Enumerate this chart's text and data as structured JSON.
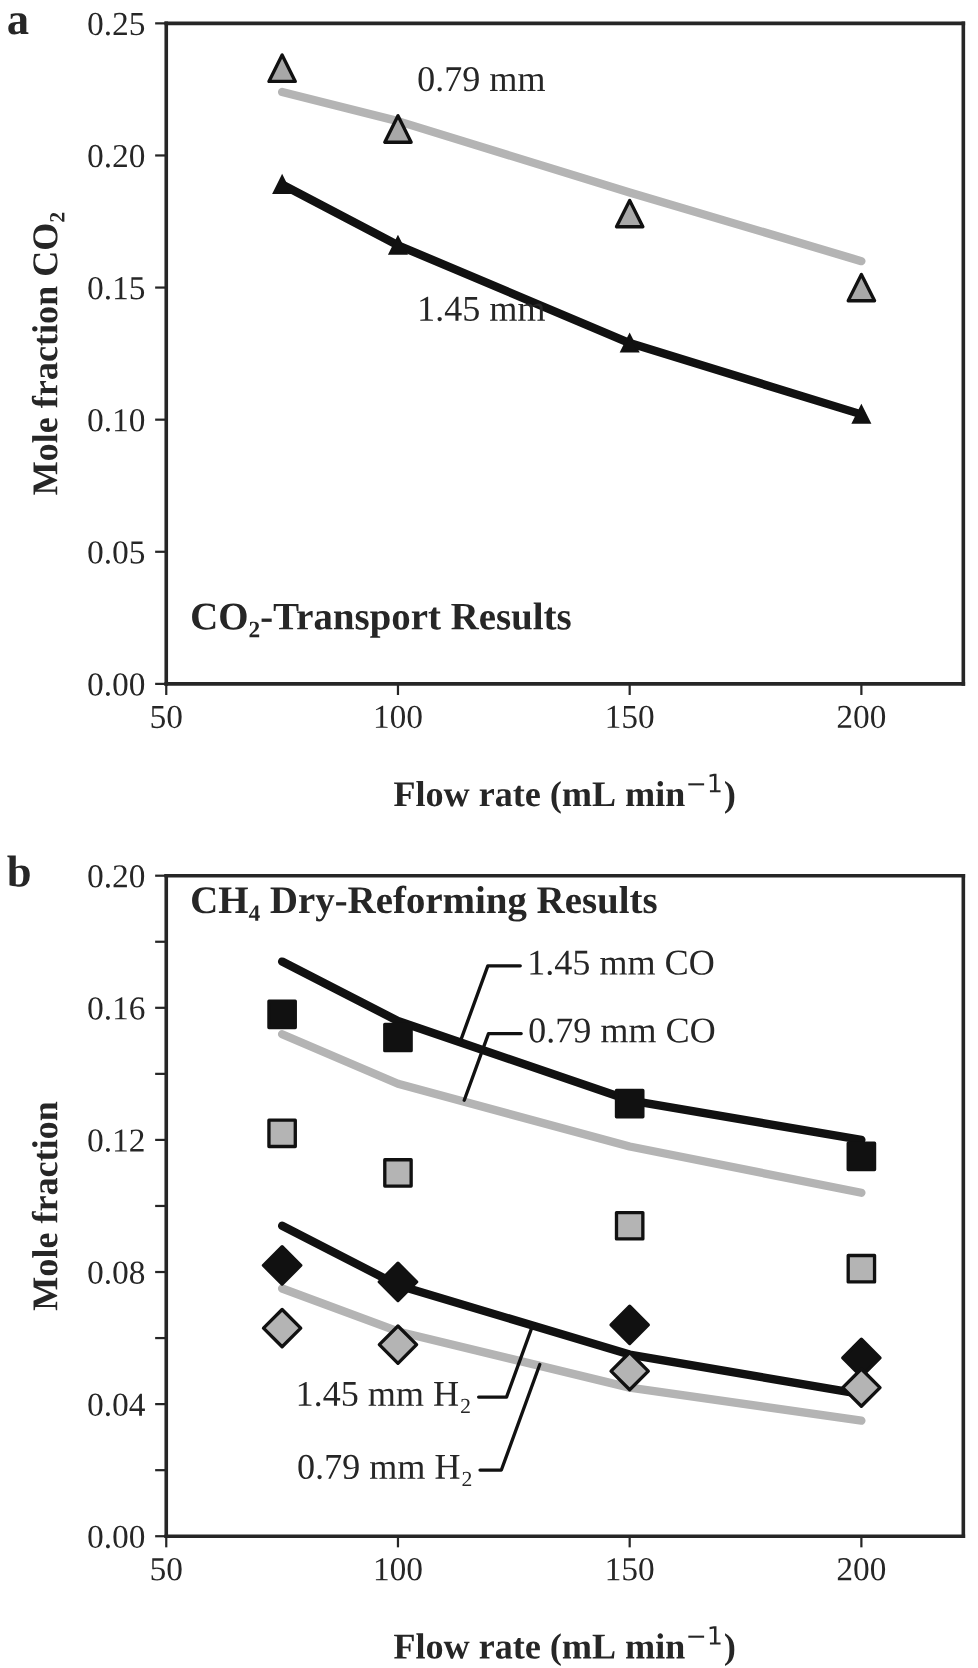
{
  "chart_data": [
    {
      "type": "line",
      "title": "CO₂-Transport Results",
      "xlabel": "Flow rate (mL min$^{−1}$)",
      "ylabel": "Mole fraction CO₂",
      "x": [
        75,
        100,
        150,
        200
      ],
      "series": [
        {
          "type": "line",
          "color": "#b4b4b4",
          "marker": "none",
          "values": [
            0.224,
            0.213,
            0.186,
            0.16
          ]
        },
        {
          "type": "scatter",
          "color": "#a8a8a8",
          "marker": "triangle",
          "values": [
            0.233,
            0.21,
            0.178,
            0.15
          ]
        },
        {
          "type": "line",
          "color": "#111111",
          "marker": "triangle",
          "values": [
            0.189,
            0.166,
            0.129,
            0.102
          ]
        }
      ],
      "xlim": [
        50,
        222
      ],
      "xticks": [
        50,
        100,
        150,
        200
      ],
      "ylim": [
        0,
        0.25
      ],
      "yticks": [
        {
          "value": 0,
          "label": "0.00"
        },
        {
          "value": 0.05,
          "label": "0.05"
        },
        {
          "value": 0.1,
          "label": "0.10"
        },
        {
          "value": 0.15,
          "label": "0.15"
        },
        {
          "value": 0.2,
          "label": "0.20"
        },
        {
          "value": 0.25,
          "label": "0.25"
        }
      ],
      "annotations": [
        "a",
        {
          "text": "0.79 mm",
          "x": 100,
          "y": 0.213
        },
        {
          "text": "1.45 mm",
          "x": 100,
          "y": 0.166
        }
      ]
    },
    {
      "type": "line",
      "title": "CH₄ Dry-Reforming Results",
      "xlabel": "Flow rate (mL min$^{−1}$)",
      "ylabel": "Mole fraction",
      "x": [
        75,
        100,
        150,
        200
      ],
      "series": [
        {
          "type": "line",
          "color": "#111111",
          "marker": "none",
          "values": [
            0.174,
            0.156,
            0.132,
            0.12
          ]
        },
        {
          "type": "line",
          "color": "#b4b4b4",
          "marker": "none",
          "values": [
            0.152,
            0.137,
            0.118,
            0.104
          ]
        },
        {
          "type": "line",
          "color": "#111111",
          "marker": "none",
          "values": [
            0.094,
            0.076,
            0.055,
            0.043
          ]
        },
        {
          "type": "line",
          "color": "#b4b4b4",
          "marker": "none",
          "values": [
            0.075,
            0.062,
            0.045,
            0.035
          ]
        },
        {
          "type": "scatter",
          "color": "#111111",
          "marker": "square",
          "values": [
            0.158,
            0.151,
            0.131,
            0.115
          ]
        },
        {
          "type": "scatter",
          "color": "#b4b4b4",
          "marker": "square",
          "values": [
            0.122,
            0.11,
            0.094,
            0.081
          ]
        },
        {
          "type": "scatter",
          "color": "#111111",
          "marker": "diamond",
          "values": [
            0.082,
            0.077,
            0.064,
            0.054
          ]
        },
        {
          "type": "scatter",
          "color": "#b4b4b4",
          "marker": "diamond",
          "values": [
            0.063,
            0.058,
            0.05,
            0.045
          ]
        }
      ],
      "xlim": [
        50,
        222
      ],
      "xticks": [
        50,
        100,
        150,
        200
      ],
      "ylim": [
        0,
        0.2
      ],
      "yticks": [
        {
          "value": 0,
          "label": "0.00"
        },
        {
          "value": 0.02,
          "label": null
        },
        {
          "value": 0.04,
          "label": "0.04"
        },
        {
          "value": 0.06,
          "label": null
        },
        {
          "value": 0.08,
          "label": "0.08"
        },
        {
          "value": 0.1,
          "label": null
        },
        {
          "value": 0.12,
          "label": "0.12"
        },
        {
          "value": 0.14,
          "label": null
        },
        {
          "value": 0.16,
          "label": "0.16"
        },
        {
          "value": 0.18,
          "label": null
        },
        {
          "value": 0.2,
          "label": "0.20"
        }
      ],
      "annotations": [
        "b",
        {
          "text": "1.45 mm CO",
          "x": 113.5,
          "y": 0.15
        },
        {
          "text": "0.79 mm CO",
          "x": 114.3,
          "y": 0.132
        },
        {
          "text": "1.45 mm H₂",
          "x": 129.1,
          "y": 0.064
        },
        {
          "text": "0.79 mm H₂",
          "x": 130.6,
          "y": 0.052
        }
      ]
    }
  ]
}
